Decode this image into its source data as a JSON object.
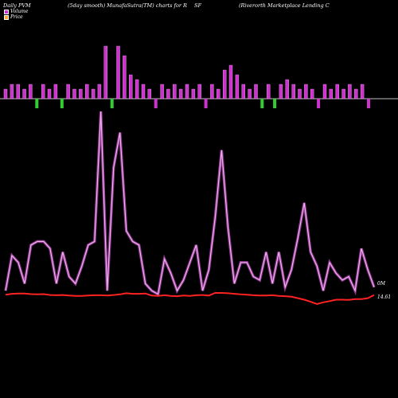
{
  "header": {
    "left": "Daily PVM",
    "center_left": "(5day smooth) MunafaSutra(TM) charts for R",
    "symbol": "SF",
    "right": "(Riverorth Marketplace   Lending C"
  },
  "legend": {
    "volume": "Volume",
    "price": "Price"
  },
  "colors": {
    "background": "#000000",
    "volume_up": "#cc33cc",
    "volume_down": "#33cc33",
    "volume_line": "#e07ae0",
    "price_line": "#ff2222",
    "axis": "#ffffff"
  },
  "chart_data": {
    "type": "line",
    "series": [
      {
        "name": "Volume",
        "values": [
          2,
          12,
          10,
          4,
          15,
          16,
          16,
          14,
          4,
          13,
          6,
          4,
          9,
          15,
          16,
          53,
          2,
          37,
          47,
          19,
          16,
          15,
          4,
          2,
          1,
          11,
          7,
          2,
          5,
          10,
          15,
          2,
          8,
          23,
          42,
          20,
          4,
          10,
          10,
          6,
          5,
          13,
          4,
          13,
          3,
          8,
          17,
          27,
          13,
          9,
          2,
          10,
          7,
          5,
          6,
          2,
          14,
          8,
          3
        ]
      },
      {
        "name": "Price",
        "values": [
          14.7,
          15.0,
          15.1,
          15.1,
          14.9,
          14.8,
          14.9,
          14.6,
          14.5,
          14.6,
          14.4,
          14.3,
          14.3,
          14.4,
          14.5,
          14.5,
          14.4,
          14.6,
          14.8,
          15.2,
          15.0,
          15.0,
          15.1,
          14.4,
          14.3,
          14.5,
          14.3,
          14.2,
          14.4,
          14.3,
          14.5,
          14.6,
          14.4,
          15.3,
          15.3,
          15.2,
          15.0,
          14.8,
          14.7,
          14.5,
          14.4,
          14.4,
          14.5,
          14.3,
          14.2,
          14.0,
          13.5,
          13.0,
          12.3,
          11.5,
          12.1,
          12.5,
          13.0,
          13.0,
          12.9,
          13.2,
          13.2,
          13.5,
          14.6
        ]
      }
    ],
    "volume_bars": [
      2,
      3,
      3,
      2,
      3,
      -2,
      3,
      2,
      3,
      -2,
      3,
      2,
      2,
      3,
      2,
      3,
      11,
      -2,
      11,
      9,
      5,
      4,
      3,
      2,
      -2,
      3,
      2,
      3,
      2,
      3,
      2,
      3,
      -2,
      3,
      2,
      6,
      7,
      5,
      3,
      2,
      3,
      -2,
      3,
      -2,
      3,
      4,
      3,
      2,
      3,
      2,
      -2,
      3,
      2,
      3,
      2,
      3,
      2,
      3,
      -2
    ]
  },
  "price_label": "14.61",
  "volume_label": "0M"
}
